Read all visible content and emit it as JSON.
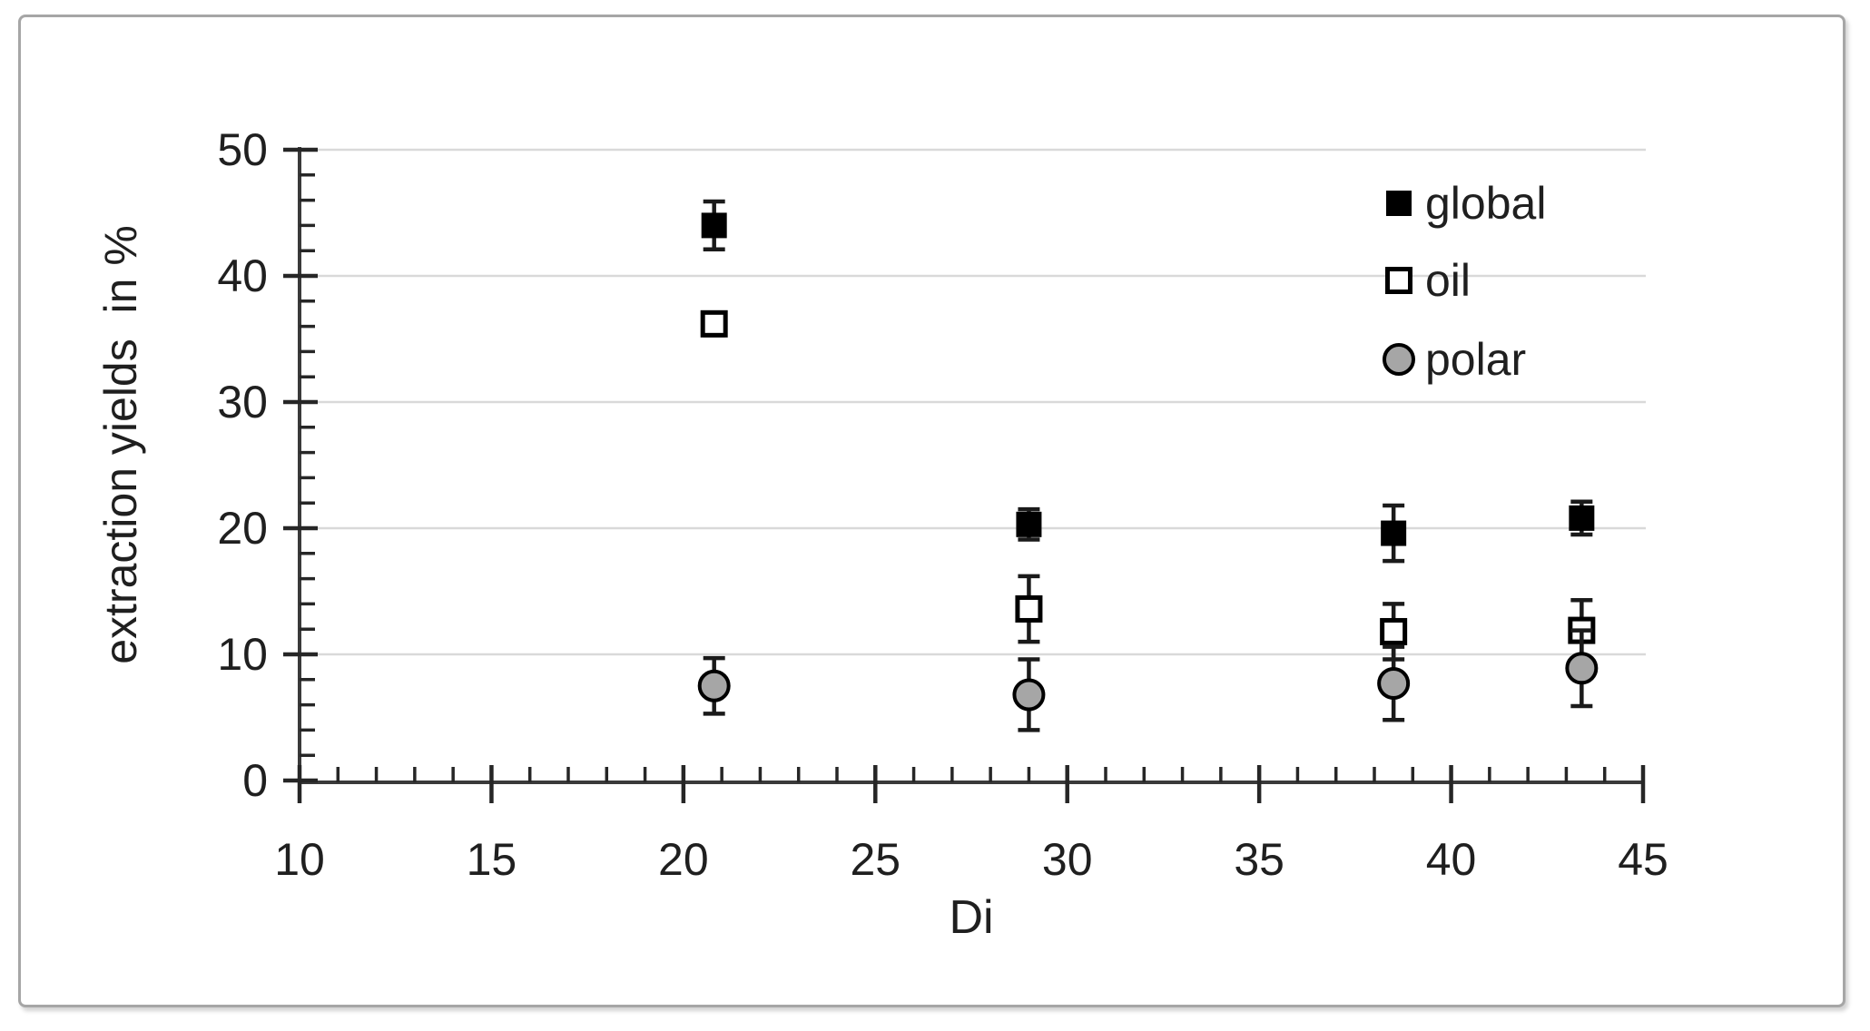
{
  "figure": {
    "background": "#ffffff",
    "border_color": "#a6a6a6"
  },
  "chart_data": {
    "type": "scatter",
    "title": "",
    "xlabel": "Di",
    "ylabel": "extraction yields  in %",
    "xlim": [
      10,
      45
    ],
    "ylim": [
      0,
      50
    ],
    "x_major_ticks": [
      10,
      15,
      20,
      25,
      30,
      35,
      40,
      45
    ],
    "x_minor_step": 1,
    "y_major_ticks": [
      0,
      10,
      20,
      30,
      40,
      50
    ],
    "y_minor_step": 2,
    "grid": "horizontal-major-only",
    "gridline_color": "#d9d9d9",
    "axis_color": "#3a3a3a",
    "tick_color": "#262626",
    "text_color": "#1f1f1f",
    "error_bar_color": "#1a1a1a",
    "legend_position": "top-right-inside",
    "x": [
      20.8,
      29.0,
      38.5,
      43.4
    ],
    "series": [
      {
        "name": "global",
        "marker": "filled-square",
        "stroke": "#000000",
        "fill": "#000000",
        "values": [
          44.0,
          20.3,
          19.6,
          20.8
        ],
        "errors": [
          1.9,
          1.2,
          2.2,
          1.3
        ]
      },
      {
        "name": "oil",
        "marker": "open-square",
        "stroke": "#000000",
        "fill": "#ffffff",
        "values": [
          36.2,
          13.6,
          11.8,
          11.9
        ],
        "errors": [
          0.9,
          2.6,
          2.2,
          2.4
        ]
      },
      {
        "name": "polar",
        "marker": "filled-circle",
        "stroke": "#000000",
        "fill": "#a6a6a6",
        "values": [
          7.5,
          6.8,
          7.7,
          8.9
        ],
        "errors": [
          2.2,
          2.8,
          2.9,
          3.0
        ]
      }
    ]
  }
}
